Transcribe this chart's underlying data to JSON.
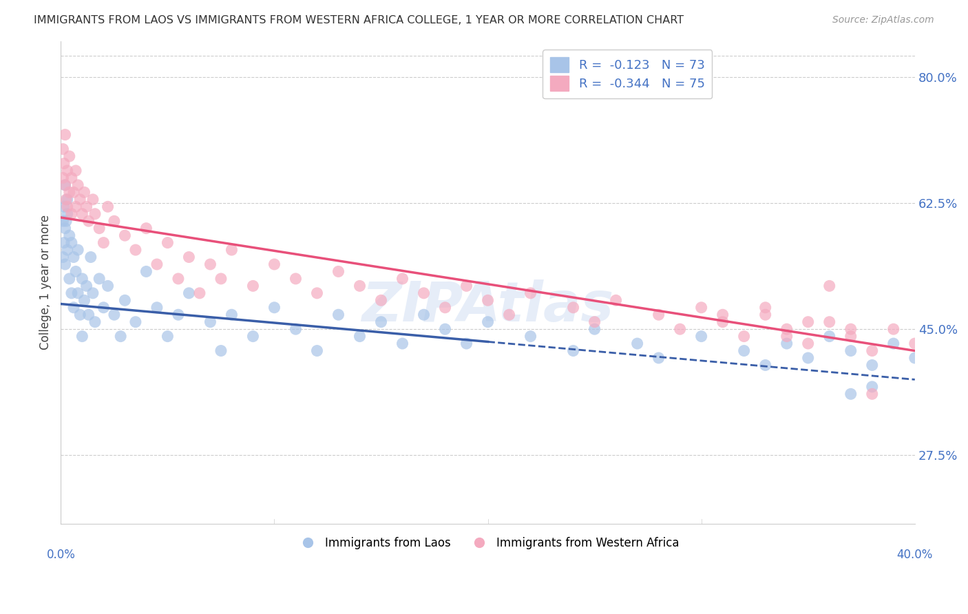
{
  "title": "IMMIGRANTS FROM LAOS VS IMMIGRANTS FROM WESTERN AFRICA COLLEGE, 1 YEAR OR MORE CORRELATION CHART",
  "source": "Source: ZipAtlas.com",
  "ylabel": "College, 1 year or more",
  "yticks": [
    27.5,
    45.0,
    62.5,
    80.0
  ],
  "xmin": 0.0,
  "xmax": 40.0,
  "ymin": 18.0,
  "ymax": 85.0,
  "r_laos": -0.123,
  "n_laos": 73,
  "r_western": -0.344,
  "n_western": 75,
  "color_laos": "#a8c4e8",
  "color_western": "#f4aabf",
  "color_laos_line": "#3a5ea8",
  "color_western_line": "#e8507a",
  "laos_line_x0": 0.0,
  "laos_line_y0": 48.5,
  "laos_line_x1": 40.0,
  "laos_line_y1": 38.0,
  "laos_solid_x1": 20.0,
  "western_line_x0": 0.0,
  "western_line_y0": 60.5,
  "western_line_x1": 40.0,
  "western_line_y1": 42.0,
  "laos_x": [
    0.1,
    0.1,
    0.15,
    0.15,
    0.2,
    0.2,
    0.2,
    0.25,
    0.3,
    0.3,
    0.3,
    0.4,
    0.4,
    0.5,
    0.5,
    0.6,
    0.6,
    0.7,
    0.8,
    0.8,
    0.9,
    1.0,
    1.0,
    1.1,
    1.2,
    1.3,
    1.4,
    1.5,
    1.6,
    1.8,
    2.0,
    2.2,
    2.5,
    2.8,
    3.0,
    3.5,
    4.0,
    4.5,
    5.0,
    5.5,
    6.0,
    7.0,
    7.5,
    8.0,
    9.0,
    10.0,
    11.0,
    12.0,
    13.0,
    14.0,
    15.0,
    16.0,
    17.0,
    18.0,
    19.0,
    20.0,
    22.0,
    24.0,
    25.0,
    27.0,
    28.0,
    30.0,
    32.0,
    33.0,
    34.0,
    35.0,
    36.0,
    37.0,
    38.0,
    39.0,
    40.0,
    38.0,
    37.0
  ],
  "laos_y": [
    55.0,
    60.0,
    57.0,
    62.0,
    54.0,
    59.0,
    65.0,
    60.0,
    56.0,
    61.0,
    63.0,
    58.0,
    52.0,
    57.0,
    50.0,
    55.0,
    48.0,
    53.0,
    50.0,
    56.0,
    47.0,
    52.0,
    44.0,
    49.0,
    51.0,
    47.0,
    55.0,
    50.0,
    46.0,
    52.0,
    48.0,
    51.0,
    47.0,
    44.0,
    49.0,
    46.0,
    53.0,
    48.0,
    44.0,
    47.0,
    50.0,
    46.0,
    42.0,
    47.0,
    44.0,
    48.0,
    45.0,
    42.0,
    47.0,
    44.0,
    46.0,
    43.0,
    47.0,
    45.0,
    43.0,
    46.0,
    44.0,
    42.0,
    45.0,
    43.0,
    41.0,
    44.0,
    42.0,
    40.0,
    43.0,
    41.0,
    44.0,
    42.0,
    40.0,
    43.0,
    41.0,
    37.0,
    36.0
  ],
  "western_x": [
    0.1,
    0.1,
    0.15,
    0.2,
    0.2,
    0.25,
    0.3,
    0.3,
    0.4,
    0.4,
    0.5,
    0.5,
    0.6,
    0.7,
    0.7,
    0.8,
    0.9,
    1.0,
    1.1,
    1.2,
    1.3,
    1.5,
    1.6,
    1.8,
    2.0,
    2.2,
    2.5,
    3.0,
    3.5,
    4.0,
    4.5,
    5.0,
    5.5,
    6.0,
    6.5,
    7.0,
    7.5,
    8.0,
    9.0,
    10.0,
    11.0,
    12.0,
    13.0,
    14.0,
    15.0,
    16.0,
    17.0,
    18.0,
    19.0,
    20.0,
    21.0,
    22.0,
    24.0,
    25.0,
    26.0,
    28.0,
    29.0,
    30.0,
    31.0,
    32.0,
    33.0,
    34.0,
    35.0,
    36.0,
    37.0,
    38.0,
    39.0,
    40.0,
    38.0,
    37.0,
    36.0,
    35.0,
    34.0,
    33.0,
    31.0
  ],
  "western_y": [
    66.0,
    70.0,
    68.0,
    65.0,
    72.0,
    63.0,
    67.0,
    62.0,
    69.0,
    64.0,
    66.0,
    61.0,
    64.0,
    62.0,
    67.0,
    65.0,
    63.0,
    61.0,
    64.0,
    62.0,
    60.0,
    63.0,
    61.0,
    59.0,
    57.0,
    62.0,
    60.0,
    58.0,
    56.0,
    59.0,
    54.0,
    57.0,
    52.0,
    55.0,
    50.0,
    54.0,
    52.0,
    56.0,
    51.0,
    54.0,
    52.0,
    50.0,
    53.0,
    51.0,
    49.0,
    52.0,
    50.0,
    48.0,
    51.0,
    49.0,
    47.0,
    50.0,
    48.0,
    46.0,
    49.0,
    47.0,
    45.0,
    48.0,
    46.0,
    44.0,
    47.0,
    45.0,
    43.0,
    46.0,
    44.0,
    42.0,
    45.0,
    43.0,
    36.0,
    45.0,
    51.0,
    46.0,
    44.0,
    48.0,
    47.0
  ]
}
